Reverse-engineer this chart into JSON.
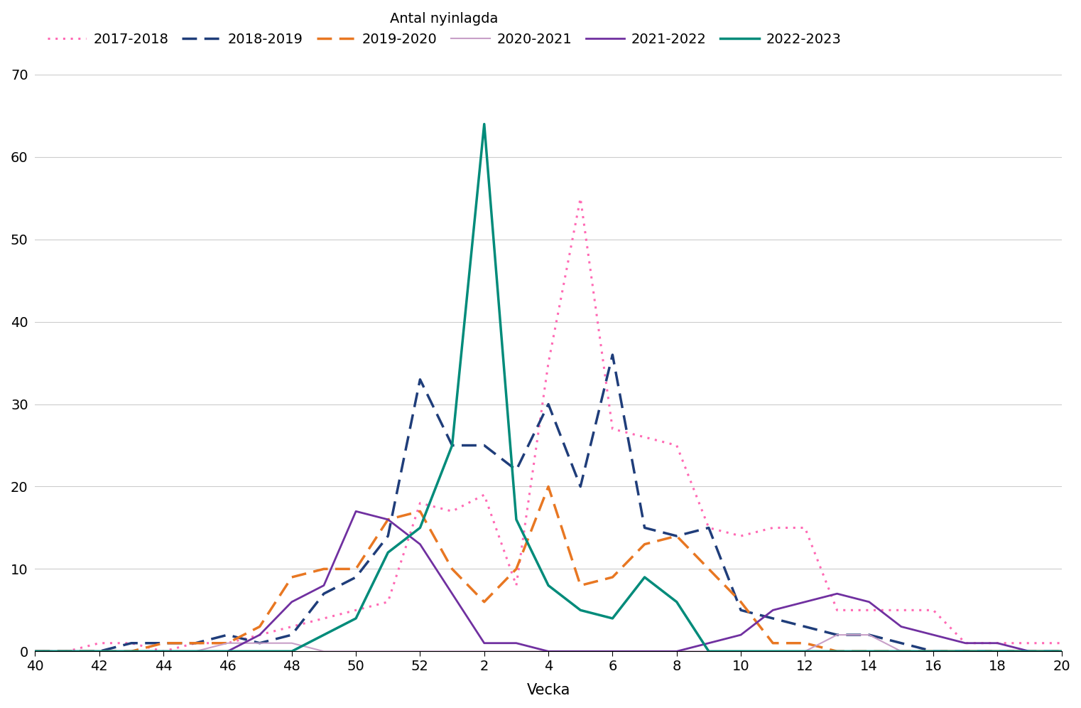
{
  "title": "Antal nyinlagda",
  "xlabel": "Vecka",
  "ylim": [
    0,
    70
  ],
  "yticks": [
    0,
    10,
    20,
    30,
    40,
    50,
    60,
    70
  ],
  "xtick_labels": [
    "40",
    "42",
    "44",
    "46",
    "48",
    "50",
    "52",
    "2",
    "4",
    "6",
    "8",
    "10",
    "12",
    "14",
    "16",
    "18",
    "20"
  ],
  "xtick_positions": [
    40,
    42,
    44,
    46,
    48,
    50,
    52,
    54,
    56,
    58,
    60,
    62,
    64,
    66,
    68,
    70,
    72
  ],
  "series": {
    "2017-2018": {
      "color": "#ff69b4",
      "linestyle": "dotted",
      "linewidth": 2.2,
      "weeks": [
        40,
        41,
        42,
        43,
        44,
        45,
        46,
        47,
        48,
        49,
        50,
        51,
        52,
        1,
        2,
        3,
        4,
        5,
        6,
        7,
        8,
        9,
        10,
        11,
        12,
        13,
        14,
        15,
        16,
        17,
        18,
        19,
        20
      ],
      "values": [
        0,
        0,
        1,
        1,
        0,
        1,
        1,
        2,
        3,
        4,
        5,
        6,
        18,
        17,
        19,
        8,
        35,
        55,
        27,
        26,
        25,
        15,
        14,
        15,
        15,
        5,
        5,
        5,
        5,
        1,
        1,
        1,
        1
      ]
    },
    "2018-2019": {
      "color": "#1f3d7a",
      "linestyle": "dashed",
      "linewidth": 2.5,
      "weeks": [
        40,
        41,
        42,
        43,
        44,
        45,
        46,
        47,
        48,
        49,
        50,
        51,
        52,
        1,
        2,
        3,
        4,
        5,
        6,
        7,
        8,
        9,
        10,
        11,
        12,
        13,
        14,
        15,
        16,
        17,
        18,
        19,
        20
      ],
      "values": [
        0,
        0,
        0,
        1,
        1,
        1,
        2,
        1,
        2,
        7,
        9,
        14,
        33,
        25,
        25,
        22,
        30,
        20,
        36,
        15,
        14,
        15,
        5,
        4,
        3,
        2,
        2,
        1,
        0,
        0,
        0,
        0,
        0
      ]
    },
    "2019-2020": {
      "color": "#e87722",
      "linestyle": "dashed",
      "linewidth": 2.5,
      "weeks": [
        40,
        41,
        42,
        43,
        44,
        45,
        46,
        47,
        48,
        49,
        50,
        51,
        52,
        1,
        2,
        3,
        4,
        5,
        6,
        7,
        8,
        9,
        10,
        11,
        12,
        13,
        14,
        15,
        16,
        17,
        18,
        19,
        20
      ],
      "values": [
        0,
        0,
        0,
        0,
        1,
        1,
        1,
        3,
        9,
        10,
        10,
        16,
        17,
        10,
        6,
        10,
        20,
        8,
        9,
        13,
        14,
        10,
        6,
        1,
        1,
        0,
        0,
        0,
        0,
        0,
        0,
        0,
        0
      ]
    },
    "2020-2021": {
      "color": "#c8a0c8",
      "linestyle": "solid",
      "linewidth": 1.5,
      "weeks": [
        40,
        41,
        42,
        43,
        44,
        45,
        46,
        47,
        48,
        49,
        50,
        51,
        52,
        1,
        2,
        3,
        4,
        5,
        6,
        7,
        8,
        9,
        10,
        11,
        12,
        13,
        14,
        15,
        16,
        17,
        18,
        19,
        20
      ],
      "values": [
        0,
        0,
        0,
        0,
        0,
        0,
        1,
        1,
        1,
        0,
        0,
        0,
        0,
        0,
        0,
        0,
        0,
        0,
        0,
        0,
        0,
        0,
        0,
        0,
        0,
        2,
        2,
        0,
        0,
        0,
        0,
        0,
        0
      ]
    },
    "2021-2022": {
      "color": "#7030a0",
      "linestyle": "solid",
      "linewidth": 2.0,
      "weeks": [
        40,
        41,
        42,
        43,
        44,
        45,
        46,
        47,
        48,
        49,
        50,
        51,
        52,
        1,
        2,
        3,
        4,
        5,
        6,
        7,
        8,
        9,
        10,
        11,
        12,
        13,
        14,
        15,
        16,
        17,
        18,
        19,
        20
      ],
      "values": [
        0,
        0,
        0,
        0,
        0,
        0,
        0,
        2,
        6,
        8,
        17,
        16,
        13,
        7,
        1,
        1,
        0,
        0,
        0,
        0,
        0,
        1,
        2,
        5,
        6,
        7,
        6,
        3,
        2,
        1,
        1,
        0,
        0
      ]
    },
    "2022-2023": {
      "color": "#008b7a",
      "linestyle": "solid",
      "linewidth": 2.5,
      "weeks": [
        40,
        41,
        42,
        43,
        44,
        45,
        46,
        47,
        48,
        49,
        50,
        51,
        52,
        1,
        2,
        3,
        4,
        5,
        6,
        7,
        8,
        9,
        10,
        11,
        12,
        13,
        14,
        15,
        16,
        17,
        18,
        19,
        20
      ],
      "values": [
        0,
        0,
        0,
        0,
        0,
        0,
        0,
        0,
        0,
        2,
        4,
        12,
        15,
        25,
        64,
        16,
        8,
        5,
        4,
        9,
        6,
        0,
        0,
        0,
        0,
        0,
        0,
        0,
        0,
        0,
        0,
        0,
        0
      ]
    }
  },
  "legend_order": [
    "2017-2018",
    "2018-2019",
    "2019-2020",
    "2020-2021",
    "2021-2022",
    "2022-2023"
  ]
}
